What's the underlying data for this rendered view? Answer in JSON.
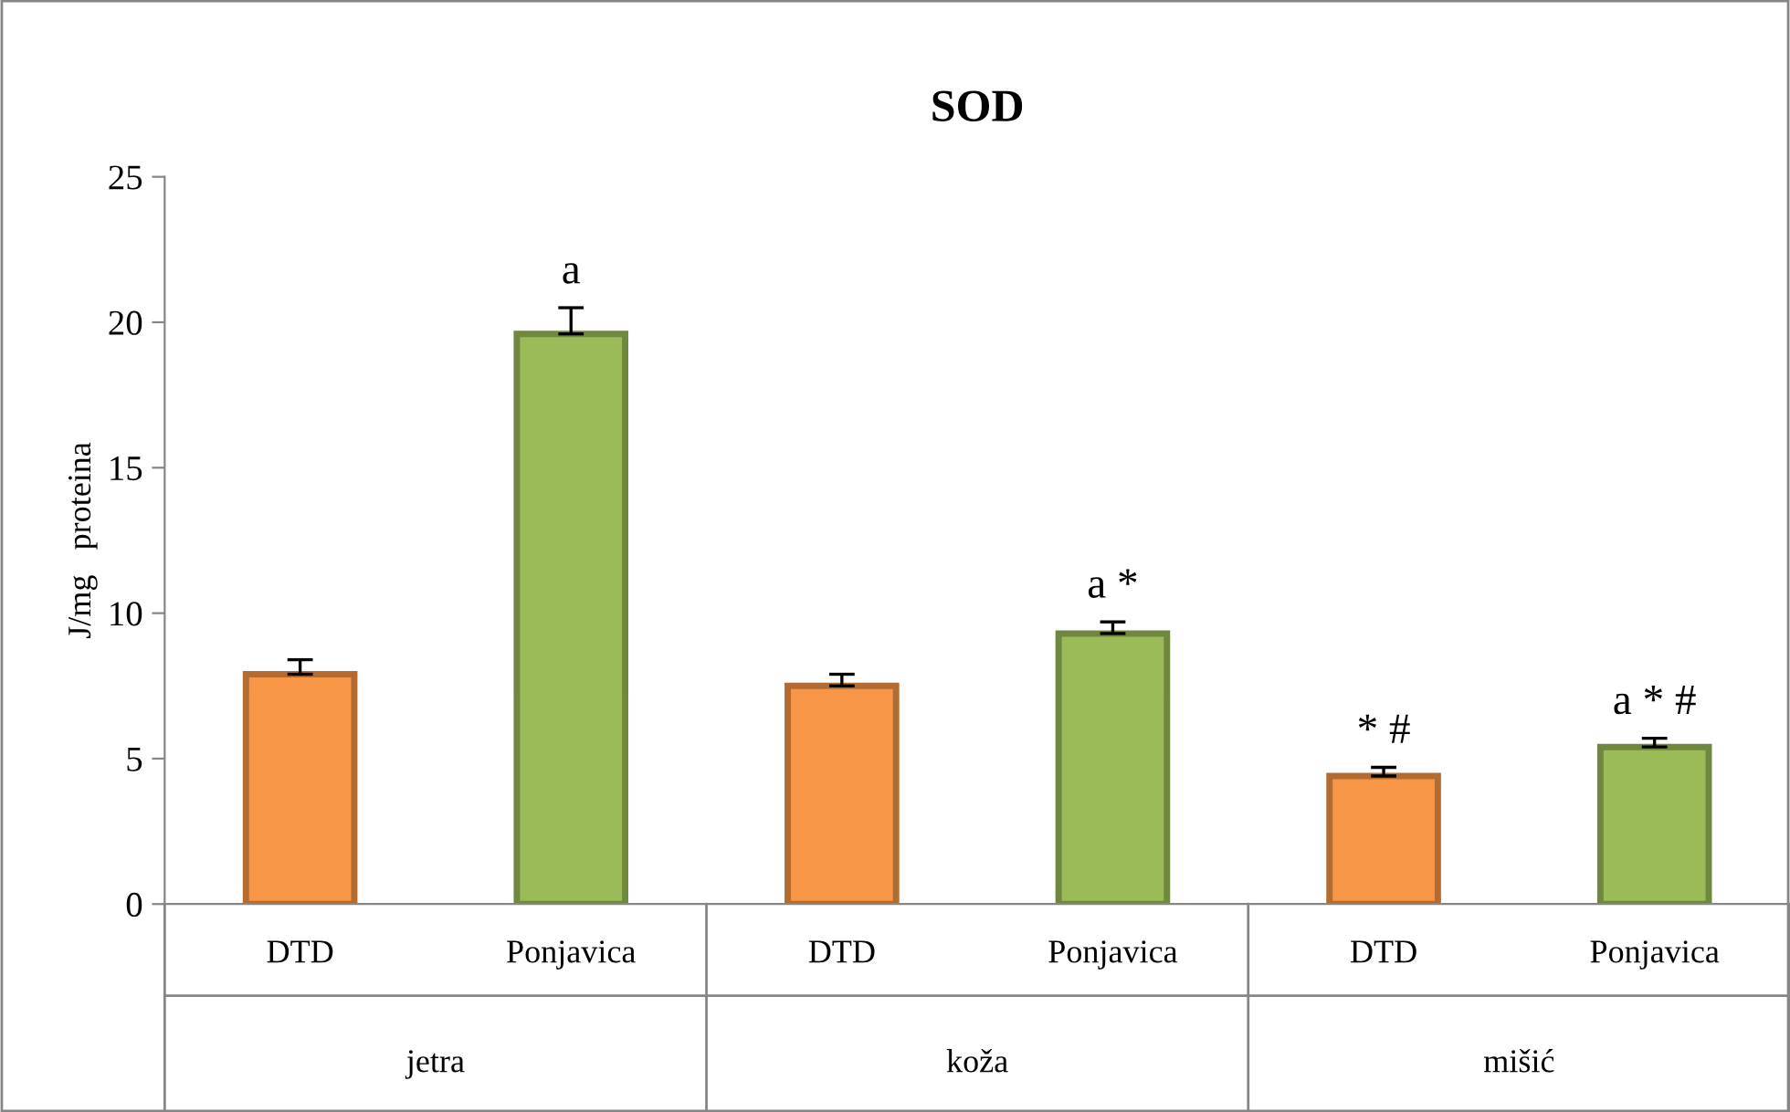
{
  "chart_data": {
    "type": "bar",
    "title": "SOD",
    "ylabel": "J/mg   proteina",
    "categories": [
      "DTD",
      "Ponjavica",
      "DTD",
      "Ponjavica",
      "DTD",
      "Ponjavica"
    ],
    "values": [
      7.9,
      19.6,
      7.5,
      9.3,
      4.4,
      5.4
    ],
    "errors": [
      0.5,
      0.9,
      0.4,
      0.4,
      0.3,
      0.3
    ],
    "colors": [
      "#f79646",
      "#9bbb59",
      "#f79646",
      "#9bbb59",
      "#f79646",
      "#9bbb59"
    ],
    "value_labels": [
      null,
      "a",
      null,
      "a *",
      "* #",
      "a * #"
    ],
    "annotations": [
      "jetra",
      "koža",
      "mišić"
    ],
    "ylim": [
      0,
      25
    ],
    "yticks": [
      0,
      5,
      10,
      15,
      20,
      25
    ],
    "grid": false
  }
}
